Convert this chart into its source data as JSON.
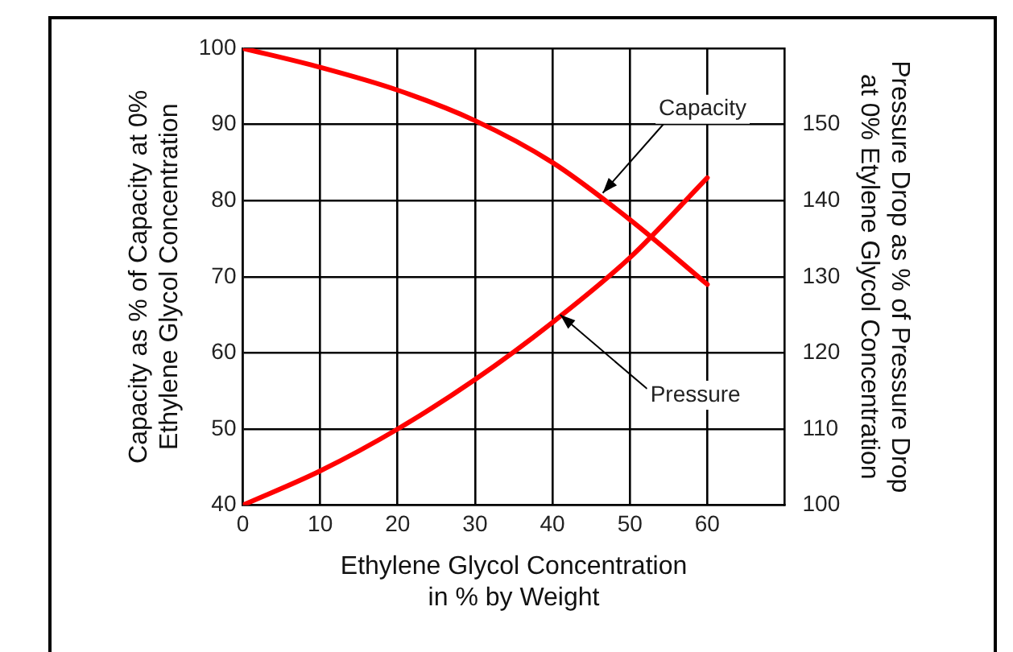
{
  "chart_data": {
    "type": "line",
    "xlabel": "Ethylene Glycol Concentration\nin % by Weight",
    "ylabel": "Capacity as % of Capacity at 0%\nEthylene Glycol Concentration",
    "y2label": "Pressure Drop as % of Pressure Drop\nat 0% Etylene Glycol Concentration",
    "x": [
      0,
      10,
      20,
      30,
      40,
      50,
      60
    ],
    "series": [
      {
        "color": "#ff0000",
        "values": [
          100,
          97.5,
          94.5,
          90.5,
          85,
          77.5,
          69
        ]
      },
      {
        "color": "#ff0000",
        "axis": "y2",
        "values": [
          100,
          104.5,
          110,
          116.5,
          124,
          132.5,
          143
        ]
      }
    ],
    "xlim": [
      0,
      70
    ],
    "xticks": [
      0,
      10,
      20,
      30,
      40,
      50,
      60
    ],
    "ylim": [
      40,
      100
    ],
    "yticks": [
      40,
      50,
      60,
      70,
      80,
      90,
      100
    ],
    "y2lim": [
      100,
      160
    ],
    "y2ticks": [
      100,
      110,
      120,
      130,
      140,
      150
    ],
    "annotations": [
      {
        "text": "Capacity",
        "x": 46.5,
        "y": 81
      },
      {
        "text": "Pressure",
        "x": 41,
        "y": 65
      }
    ],
    "grid": true,
    "legend": false,
    "marker": "none",
    "line_style": "solid"
  }
}
